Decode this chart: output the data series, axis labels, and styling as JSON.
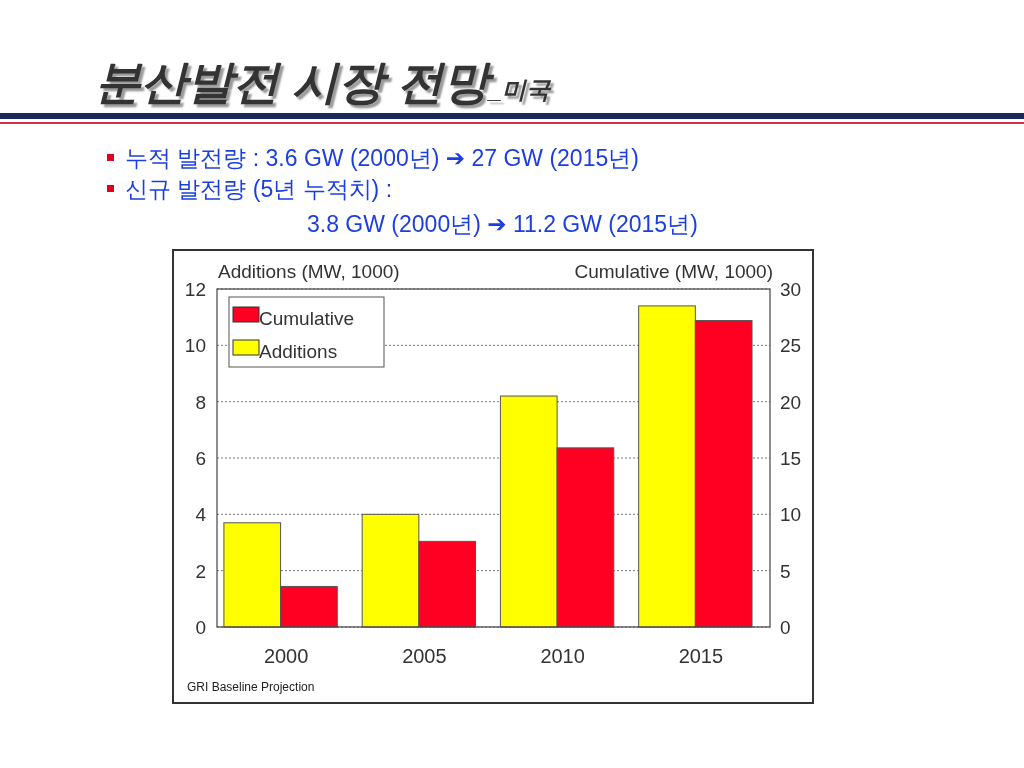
{
  "chart_data": {
    "type": "bar",
    "title": "분산발전 시장 전망",
    "subtitle": "_미국",
    "annotations": [
      "누적 발전량  : 3.6 GW (2000년) ➔ 27 GW (2015년)",
      "신규 발전량 (5년 누적치) :",
      "3.8 GW (2000년) ➔ 11.2 GW (2015년)",
      "GRI Baseline Projection"
    ],
    "ylabel": "Additions (MW, 1000)",
    "y2label": "Cumulative (MW, 1000)",
    "categories": [
      "2000",
      "2005",
      "2010",
      "2015"
    ],
    "series": [
      {
        "name": "Additions",
        "color": "#ffff00",
        "values": [
          3.7,
          4.0,
          8.2,
          11.4
        ]
      },
      {
        "name": "Cumulative",
        "color": "#ff0022",
        "axis": "y2",
        "values": [
          3.6,
          7.6,
          15.9,
          27.2
        ]
      }
    ],
    "ylim": [
      0,
      12
    ],
    "yticks": [
      0,
      2,
      4,
      6,
      8,
      10,
      12
    ],
    "y2lim": [
      0,
      30
    ],
    "y2ticks": [
      0,
      5,
      10,
      15,
      20,
      25,
      30
    ],
    "grid": "y",
    "legend": "top left"
  }
}
